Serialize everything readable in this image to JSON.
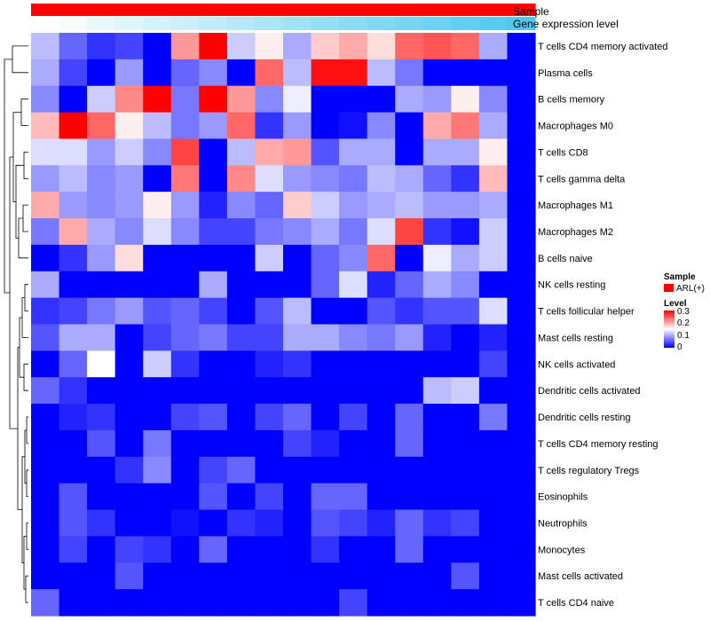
{
  "chart_data": {
    "type": "heatmap",
    "title": "",
    "annotation_tracks": [
      {
        "name": "Sample",
        "values": [
          "ARL(+)",
          "ARL(+)",
          "ARL(+)",
          "ARL(+)",
          "ARL(+)",
          "ARL(+)",
          "ARL(+)",
          "ARL(+)",
          "ARL(+)",
          "ARL(+)",
          "ARL(+)",
          "ARL(+)",
          "ARL(+)",
          "ARL(+)",
          "ARL(+)",
          "ARL(+)",
          "ARL(+)",
          "ARL(+)"
        ]
      },
      {
        "name": "Gene expression level",
        "values": [
          0.0,
          0.06,
          0.12,
          0.18,
          0.24,
          0.29,
          0.35,
          0.41,
          0.47,
          0.53,
          0.59,
          0.65,
          0.71,
          0.76,
          0.82,
          0.88,
          0.94,
          1.0
        ]
      }
    ],
    "rows": [
      "T cells CD4 memory activated",
      "Plasma cells",
      "B cells memory",
      "Macrophages M0",
      "T cells CD8",
      "T cells gamma delta",
      "Macrophages M1",
      "Macrophages M2",
      "B cells naive",
      "NK cells resting",
      "T cells follicular helper",
      "Mast cells resting",
      "NK cells activated",
      "Dendritic cells activated",
      "Dendritic cells resting",
      "T cells CD4 memory resting",
      "T cells regulatory  Tregs",
      "Eosinophils",
      "Neutrophils",
      "Monocytes",
      "Mast cells activated",
      "T cells CD4 naive"
    ],
    "n_columns": 18,
    "values": [
      [
        0.11,
        0.06,
        0.03,
        0.04,
        0.0,
        0.21,
        0.3,
        0.12,
        0.16,
        0.1,
        0.18,
        0.2,
        0.17,
        0.24,
        0.25,
        0.24,
        0.1,
        0.0
      ],
      [
        0.1,
        0.04,
        0.0,
        0.09,
        0.0,
        0.06,
        0.08,
        0.0,
        0.24,
        0.11,
        0.29,
        0.29,
        0.11,
        0.07,
        0.0,
        0.0,
        0.0,
        0.0
      ],
      [
        0.08,
        0.0,
        0.12,
        0.22,
        0.3,
        0.07,
        0.3,
        0.21,
        0.08,
        0.14,
        0.0,
        0.0,
        0.0,
        0.1,
        0.09,
        0.16,
        0.08,
        0.0
      ],
      [
        0.19,
        0.3,
        0.24,
        0.16,
        0.11,
        0.07,
        0.09,
        0.24,
        0.03,
        0.09,
        0.0,
        0.01,
        0.08,
        0.0,
        0.2,
        0.23,
        0.1,
        0.0
      ],
      [
        0.13,
        0.13,
        0.09,
        0.12,
        0.08,
        0.26,
        0.0,
        0.11,
        0.2,
        0.21,
        0.05,
        0.1,
        0.1,
        0.0,
        0.1,
        0.1,
        0.16,
        0.0
      ],
      [
        0.09,
        0.11,
        0.08,
        0.09,
        0.0,
        0.23,
        0.0,
        0.22,
        0.13,
        0.09,
        0.08,
        0.07,
        0.11,
        0.1,
        0.06,
        0.03,
        0.19,
        0.0
      ],
      [
        0.2,
        0.09,
        0.08,
        0.09,
        0.16,
        0.09,
        0.02,
        0.08,
        0.06,
        0.18,
        0.12,
        0.09,
        0.1,
        0.11,
        0.09,
        0.09,
        0.1,
        0.0
      ],
      [
        0.07,
        0.2,
        0.1,
        0.08,
        0.13,
        0.08,
        0.04,
        0.04,
        0.07,
        0.08,
        0.1,
        0.07,
        0.13,
        0.26,
        0.03,
        0.01,
        0.12,
        0.0
      ],
      [
        0.0,
        0.03,
        0.09,
        0.17,
        0.0,
        0.0,
        0.0,
        0.0,
        0.12,
        0.0,
        0.06,
        0.08,
        0.24,
        0.0,
        0.14,
        0.1,
        0.12,
        0.0
      ],
      [
        0.1,
        0.0,
        0.0,
        0.0,
        0.0,
        0.0,
        0.1,
        0.0,
        0.0,
        0.0,
        0.06,
        0.13,
        0.02,
        0.06,
        0.1,
        0.08,
        0.0,
        0.0
      ],
      [
        0.03,
        0.04,
        0.07,
        0.09,
        0.05,
        0.06,
        0.04,
        0.0,
        0.05,
        0.11,
        0.0,
        0.0,
        0.05,
        0.03,
        0.05,
        0.05,
        0.13,
        0.0
      ],
      [
        0.05,
        0.1,
        0.1,
        0.0,
        0.04,
        0.06,
        0.07,
        0.04,
        0.04,
        0.1,
        0.1,
        0.08,
        0.07,
        0.09,
        0.02,
        0.0,
        0.02,
        0.0
      ],
      [
        0.0,
        0.06,
        0.15,
        0.0,
        0.12,
        0.03,
        0.0,
        0.0,
        0.02,
        0.03,
        0.0,
        0.0,
        0.0,
        0.0,
        0.0,
        0.0,
        0.04,
        0.0
      ],
      [
        0.06,
        0.03,
        0.0,
        0.0,
        0.0,
        0.0,
        0.0,
        0.0,
        0.0,
        0.0,
        0.0,
        0.0,
        0.0,
        0.0,
        0.11,
        0.12,
        0.0,
        0.0
      ],
      [
        0.0,
        0.02,
        0.03,
        0.0,
        0.0,
        0.04,
        0.05,
        0.0,
        0.04,
        0.06,
        0.0,
        0.04,
        0.0,
        0.06,
        0.0,
        0.0,
        0.07,
        0.0
      ],
      [
        0.0,
        0.0,
        0.05,
        0.0,
        0.07,
        0.0,
        0.0,
        0.0,
        0.0,
        0.04,
        0.02,
        0.0,
        0.0,
        0.06,
        0.0,
        0.0,
        0.0,
        0.0
      ],
      [
        0.0,
        0.0,
        0.0,
        0.03,
        0.08,
        0.0,
        0.04,
        0.06,
        0.0,
        0.0,
        0.0,
        0.0,
        0.0,
        0.0,
        0.0,
        0.0,
        0.0,
        0.0
      ],
      [
        0.0,
        0.05,
        0.0,
        0.0,
        0.0,
        0.0,
        0.05,
        0.0,
        0.04,
        0.0,
        0.06,
        0.06,
        0.0,
        0.0,
        0.0,
        0.0,
        0.0,
        0.0
      ],
      [
        0.0,
        0.05,
        0.03,
        0.0,
        0.0,
        0.01,
        0.0,
        0.03,
        0.02,
        0.0,
        0.05,
        0.04,
        0.02,
        0.06,
        0.03,
        0.04,
        0.0,
        0.0
      ],
      [
        0.0,
        0.04,
        0.0,
        0.04,
        0.03,
        0.0,
        0.06,
        0.0,
        0.0,
        0.0,
        0.03,
        0.0,
        0.0,
        0.06,
        0.0,
        0.0,
        0.0,
        0.0
      ],
      [
        0.0,
        0.0,
        0.0,
        0.05,
        0.0,
        0.0,
        0.0,
        0.0,
        0.0,
        0.0,
        0.0,
        0.0,
        0.0,
        0.0,
        0.0,
        0.05,
        0.0,
        0.0
      ],
      [
        0.06,
        0.0,
        0.0,
        0.0,
        0.0,
        0.0,
        0.0,
        0.0,
        0.0,
        0.0,
        0.0,
        0.04,
        0.0,
        0.0,
        0.0,
        0.0,
        0.0,
        0.0
      ]
    ],
    "color_scale": {
      "low": "#0000FF",
      "mid": "#FFFFFF",
      "high": "#FF0000",
      "min": 0,
      "mid_value": 0.15,
      "max": 0.3
    },
    "annotation_colors": {
      "sample_arl": "#FF0000",
      "expr_low": "#FFFFFF",
      "expr_high": "#4DC8F0"
    },
    "legend": {
      "sample_title": "Sample",
      "sample_entry": "ARL(+)",
      "level_title": "Level",
      "level_ticks": [
        "0.3",
        "0.2",
        "0.1",
        "0"
      ]
    }
  }
}
